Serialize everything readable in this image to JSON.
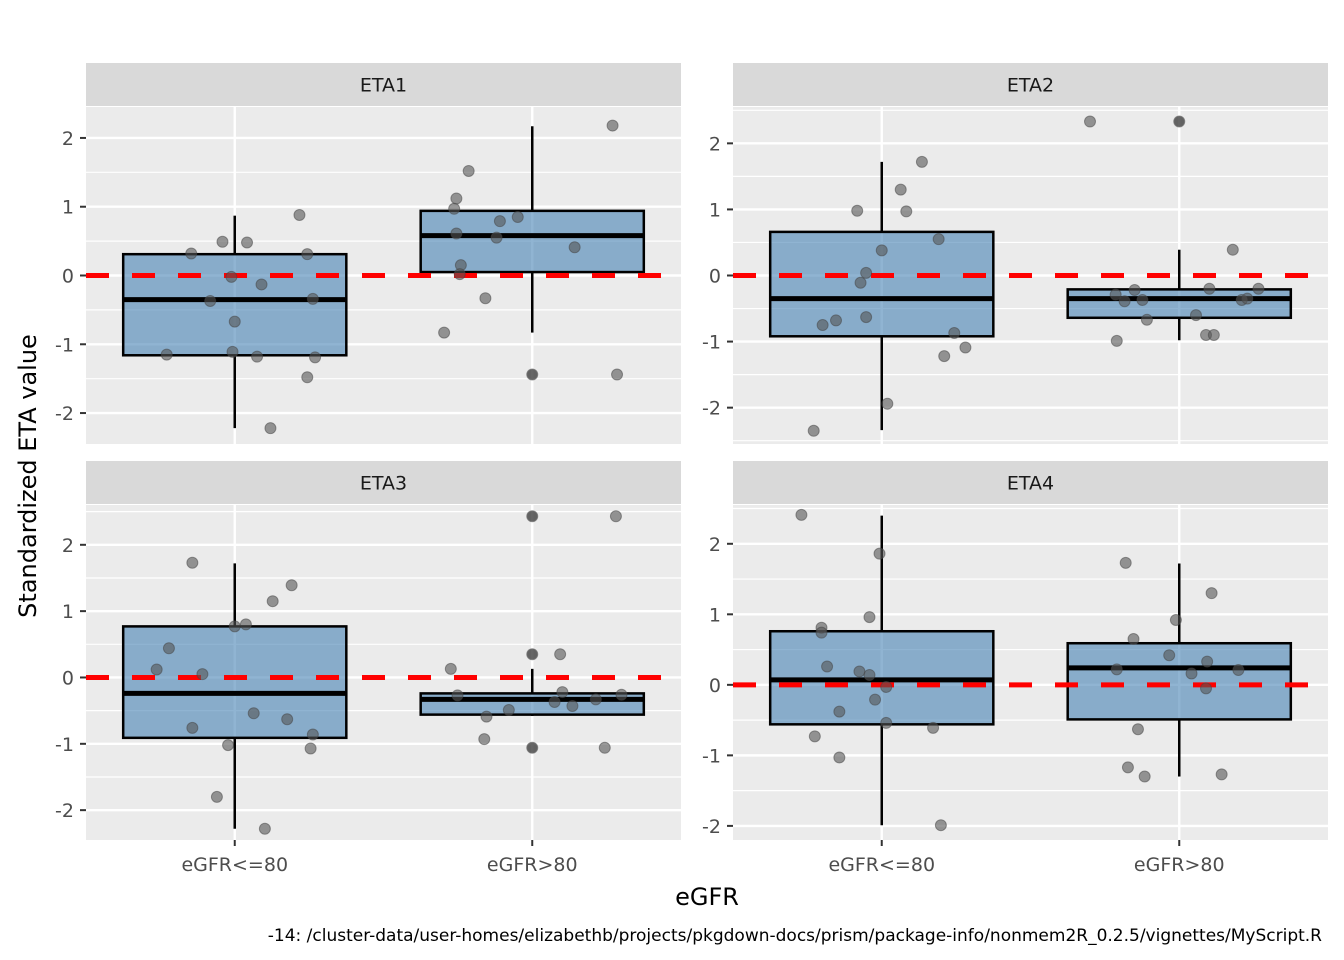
{
  "chart_data": {
    "type": "boxplot",
    "title": "",
    "xlabel": "eGFR",
    "ylabel": "Standardized ETA value",
    "caption": "-14: /cluster-data/user-homes/elizabethb/projects/pkgdown-docs/prism/package-info/nonmem2R_0.2.5/vignettes/MyScript.R",
    "categories": [
      "eGFR<=80",
      "eGFR>80"
    ],
    "reference_line": {
      "y": 0,
      "style": "dashed",
      "color": "#ff0000"
    },
    "colors": {
      "box_fill": "#4682b4",
      "box_fill_opacity": 0.6,
      "point": "#555555",
      "panel_bg": "#ebebeb",
      "strip_bg": "#d9d9d9",
      "grid": "#ffffff"
    },
    "facets": [
      {
        "label": "ETA1",
        "ylim": [
          -2.45,
          2.45
        ],
        "yticks": [
          -2,
          -1,
          0,
          1,
          2
        ],
        "boxes": [
          {
            "category": "eGFR<=80",
            "lower_whisker": -2.22,
            "q1": -1.16,
            "median": -0.35,
            "q3": 0.31,
            "upper_whisker": 0.87,
            "outliers": []
          },
          {
            "category": "eGFR>80",
            "lower_whisker": -0.83,
            "q1": 0.05,
            "median": 0.58,
            "q3": 0.94,
            "upper_whisker": 2.17,
            "outliers": [
              -1.44
            ]
          }
        ],
        "points": [
          {
            "category": "eGFR<=80",
            "jitter": -0.61,
            "y": -1.15
          },
          {
            "category": "eGFR<=80",
            "jitter": -0.39,
            "y": 0.32
          },
          {
            "category": "eGFR<=80",
            "jitter": -0.22,
            "y": -0.37
          },
          {
            "category": "eGFR<=80",
            "jitter": -0.11,
            "y": 0.49
          },
          {
            "category": "eGFR<=80",
            "jitter": -0.03,
            "y": -0.02
          },
          {
            "category": "eGFR<=80",
            "jitter": -0.02,
            "y": -1.11
          },
          {
            "category": "eGFR<=80",
            "jitter": 0.0,
            "y": -0.67
          },
          {
            "category": "eGFR<=80",
            "jitter": 0.11,
            "y": 0.48
          },
          {
            "category": "eGFR<=80",
            "jitter": 0.2,
            "y": -1.18
          },
          {
            "category": "eGFR<=80",
            "jitter": 0.24,
            "y": -0.13
          },
          {
            "category": "eGFR<=80",
            "jitter": 0.32,
            "y": -2.22
          },
          {
            "category": "eGFR<=80",
            "jitter": 0.58,
            "y": 0.88
          },
          {
            "category": "eGFR<=80",
            "jitter": 0.65,
            "y": 0.31
          },
          {
            "category": "eGFR<=80",
            "jitter": 0.65,
            "y": -1.48
          },
          {
            "category": "eGFR<=80",
            "jitter": 0.7,
            "y": -0.34
          },
          {
            "category": "eGFR<=80",
            "jitter": 0.72,
            "y": -1.19
          },
          {
            "category": "eGFR>80",
            "jitter": -0.79,
            "y": -0.83
          },
          {
            "category": "eGFR>80",
            "jitter": -0.7,
            "y": 0.97
          },
          {
            "category": "eGFR>80",
            "jitter": -0.68,
            "y": 1.12
          },
          {
            "category": "eGFR>80",
            "jitter": -0.68,
            "y": 0.61
          },
          {
            "category": "eGFR>80",
            "jitter": -0.64,
            "y": 0.15
          },
          {
            "category": "eGFR>80",
            "jitter": -0.65,
            "y": 0.02
          },
          {
            "category": "eGFR>80",
            "jitter": -0.57,
            "y": 1.52
          },
          {
            "category": "eGFR>80",
            "jitter": -0.42,
            "y": -0.33
          },
          {
            "category": "eGFR>80",
            "jitter": -0.32,
            "y": 0.55
          },
          {
            "category": "eGFR>80",
            "jitter": -0.29,
            "y": 0.79
          },
          {
            "category": "eGFR>80",
            "jitter": -0.13,
            "y": 0.85
          },
          {
            "category": "eGFR>80",
            "jitter": 0.0,
            "y": -1.44
          },
          {
            "category": "eGFR>80",
            "jitter": 0.38,
            "y": 0.41
          },
          {
            "category": "eGFR>80",
            "jitter": 0.72,
            "y": 2.18
          },
          {
            "category": "eGFR>80",
            "jitter": 0.76,
            "y": -1.44
          }
        ]
      },
      {
        "label": "ETA2",
        "ylim": [
          -2.55,
          2.55
        ],
        "yticks": [
          -2,
          -1,
          0,
          1,
          2
        ],
        "boxes": [
          {
            "category": "eGFR<=80",
            "lower_whisker": -2.34,
            "q1": -0.92,
            "median": -0.35,
            "q3": 0.66,
            "upper_whisker": 1.72,
            "outliers": []
          },
          {
            "category": "eGFR>80",
            "lower_whisker": -0.98,
            "q1": -0.64,
            "median": -0.35,
            "q3": -0.21,
            "upper_whisker": 0.39,
            "outliers": [
              2.33
            ]
          }
        ],
        "points": [
          {
            "category": "eGFR<=80",
            "jitter": -0.61,
            "y": -2.35
          },
          {
            "category": "eGFR<=80",
            "jitter": -0.53,
            "y": -0.75
          },
          {
            "category": "eGFR<=80",
            "jitter": -0.41,
            "y": -0.68
          },
          {
            "category": "eGFR<=80",
            "jitter": -0.22,
            "y": 0.98
          },
          {
            "category": "eGFR<=80",
            "jitter": -0.19,
            "y": -0.11
          },
          {
            "category": "eGFR<=80",
            "jitter": -0.14,
            "y": 0.04
          },
          {
            "category": "eGFR<=80",
            "jitter": -0.14,
            "y": -0.63
          },
          {
            "category": "eGFR<=80",
            "jitter": 0.0,
            "y": 0.38
          },
          {
            "category": "eGFR<=80",
            "jitter": 0.05,
            "y": -1.94
          },
          {
            "category": "eGFR<=80",
            "jitter": 0.17,
            "y": 1.3
          },
          {
            "category": "eGFR<=80",
            "jitter": 0.22,
            "y": 0.97
          },
          {
            "category": "eGFR<=80",
            "jitter": 0.36,
            "y": 1.72
          },
          {
            "category": "eGFR<=80",
            "jitter": 0.51,
            "y": 0.55
          },
          {
            "category": "eGFR<=80",
            "jitter": 0.56,
            "y": -1.22
          },
          {
            "category": "eGFR<=80",
            "jitter": 0.65,
            "y": -0.87
          },
          {
            "category": "eGFR<=80",
            "jitter": 0.75,
            "y": -1.09
          },
          {
            "category": "eGFR>80",
            "jitter": -0.8,
            "y": 2.33
          },
          {
            "category": "eGFR>80",
            "jitter": -0.56,
            "y": -0.99
          },
          {
            "category": "eGFR>80",
            "jitter": -0.57,
            "y": -0.29
          },
          {
            "category": "eGFR>80",
            "jitter": -0.49,
            "y": -0.39
          },
          {
            "category": "eGFR>80",
            "jitter": -0.4,
            "y": -0.22
          },
          {
            "category": "eGFR>80",
            "jitter": -0.33,
            "y": -0.37
          },
          {
            "category": "eGFR>80",
            "jitter": -0.29,
            "y": -0.67
          },
          {
            "category": "eGFR>80",
            "jitter": 0.0,
            "y": 2.33
          },
          {
            "category": "eGFR>80",
            "jitter": 0.15,
            "y": -0.6
          },
          {
            "category": "eGFR>80",
            "jitter": 0.24,
            "y": -0.9
          },
          {
            "category": "eGFR>80",
            "jitter": 0.27,
            "y": -0.2
          },
          {
            "category": "eGFR>80",
            "jitter": 0.31,
            "y": -0.9
          },
          {
            "category": "eGFR>80",
            "jitter": 0.48,
            "y": 0.39
          },
          {
            "category": "eGFR>80",
            "jitter": 0.56,
            "y": -0.37
          },
          {
            "category": "eGFR>80",
            "jitter": 0.61,
            "y": -0.35
          },
          {
            "category": "eGFR>80",
            "jitter": 0.71,
            "y": -0.2
          }
        ]
      },
      {
        "label": "ETA3",
        "ylim": [
          -2.45,
          2.6
        ],
        "yticks": [
          -2,
          -1,
          0,
          1,
          2
        ],
        "boxes": [
          {
            "category": "eGFR<=80",
            "lower_whisker": -2.28,
            "q1": -0.91,
            "median": -0.24,
            "q3": 0.77,
            "upper_whisker": 1.72,
            "outliers": []
          },
          {
            "category": "eGFR>80",
            "lower_whisker": -0.58,
            "q1": -0.56,
            "median": -0.33,
            "q3": -0.24,
            "upper_whisker": 0.13,
            "outliers": [
              2.43,
              0.35,
              -1.06
            ]
          }
        ],
        "points": [
          {
            "category": "eGFR<=80",
            "jitter": -0.7,
            "y": 0.12
          },
          {
            "category": "eGFR<=80",
            "jitter": -0.59,
            "y": 0.44
          },
          {
            "category": "eGFR<=80",
            "jitter": -0.38,
            "y": 1.73
          },
          {
            "category": "eGFR<=80",
            "jitter": -0.38,
            "y": -0.76
          },
          {
            "category": "eGFR<=80",
            "jitter": -0.29,
            "y": 0.05
          },
          {
            "category": "eGFR<=80",
            "jitter": -0.06,
            "y": -1.02
          },
          {
            "category": "eGFR<=80",
            "jitter": -0.16,
            "y": -1.8
          },
          {
            "category": "eGFR<=80",
            "jitter": 0.0,
            "y": 0.77
          },
          {
            "category": "eGFR<=80",
            "jitter": 0.1,
            "y": 0.8
          },
          {
            "category": "eGFR<=80",
            "jitter": 0.17,
            "y": -0.54
          },
          {
            "category": "eGFR<=80",
            "jitter": 0.27,
            "y": -2.28
          },
          {
            "category": "eGFR<=80",
            "jitter": 0.34,
            "y": 1.15
          },
          {
            "category": "eGFR<=80",
            "jitter": 0.47,
            "y": -0.63
          },
          {
            "category": "eGFR<=80",
            "jitter": 0.51,
            "y": 1.39
          },
          {
            "category": "eGFR<=80",
            "jitter": 0.68,
            "y": -1.07
          },
          {
            "category": "eGFR<=80",
            "jitter": 0.7,
            "y": -0.86
          },
          {
            "category": "eGFR>80",
            "jitter": -0.73,
            "y": 0.13
          },
          {
            "category": "eGFR>80",
            "jitter": -0.67,
            "y": -0.27
          },
          {
            "category": "eGFR>80",
            "jitter": -0.43,
            "y": -0.93
          },
          {
            "category": "eGFR>80",
            "jitter": -0.41,
            "y": -0.59
          },
          {
            "category": "eGFR>80",
            "jitter": -0.21,
            "y": -0.49
          },
          {
            "category": "eGFR>80",
            "jitter": 0.0,
            "y": 2.43
          },
          {
            "category": "eGFR>80",
            "jitter": 0.0,
            "y": 0.35
          },
          {
            "category": "eGFR>80",
            "jitter": 0.0,
            "y": -1.06
          },
          {
            "category": "eGFR>80",
            "jitter": 0.2,
            "y": -0.37
          },
          {
            "category": "eGFR>80",
            "jitter": 0.25,
            "y": 0.35
          },
          {
            "category": "eGFR>80",
            "jitter": 0.27,
            "y": -0.22
          },
          {
            "category": "eGFR>80",
            "jitter": 0.36,
            "y": -0.43
          },
          {
            "category": "eGFR>80",
            "jitter": 0.57,
            "y": -0.33
          },
          {
            "category": "eGFR>80",
            "jitter": 0.65,
            "y": -1.06
          },
          {
            "category": "eGFR>80",
            "jitter": 0.75,
            "y": 2.43
          },
          {
            "category": "eGFR>80",
            "jitter": 0.8,
            "y": -0.26
          }
        ]
      },
      {
        "label": "ETA4",
        "ylim": [
          -2.2,
          2.55
        ],
        "yticks": [
          -2,
          -1,
          0,
          1,
          2
        ],
        "boxes": [
          {
            "category": "eGFR<=80",
            "lower_whisker": -1.99,
            "q1": -0.56,
            "median": 0.07,
            "q3": 0.76,
            "upper_whisker": 2.4,
            "outliers": []
          },
          {
            "category": "eGFR>80",
            "lower_whisker": -1.3,
            "q1": -0.49,
            "median": 0.24,
            "q3": 0.59,
            "upper_whisker": 1.72,
            "outliers": []
          }
        ],
        "points": [
          {
            "category": "eGFR<=80",
            "jitter": -0.72,
            "y": 2.41
          },
          {
            "category": "eGFR<=80",
            "jitter": -0.6,
            "y": -0.73
          },
          {
            "category": "eGFR<=80",
            "jitter": -0.54,
            "y": 0.81
          },
          {
            "category": "eGFR<=80",
            "jitter": -0.54,
            "y": 0.74
          },
          {
            "category": "eGFR<=80",
            "jitter": -0.49,
            "y": 0.26
          },
          {
            "category": "eGFR<=80",
            "jitter": -0.38,
            "y": -0.38
          },
          {
            "category": "eGFR<=80",
            "jitter": -0.38,
            "y": -1.03
          },
          {
            "category": "eGFR<=80",
            "jitter": -0.2,
            "y": 0.19
          },
          {
            "category": "eGFR<=80",
            "jitter": -0.11,
            "y": 0.96
          },
          {
            "category": "eGFR<=80",
            "jitter": -0.11,
            "y": 0.14
          },
          {
            "category": "eGFR<=80",
            "jitter": -0.06,
            "y": -0.21
          },
          {
            "category": "eGFR<=80",
            "jitter": -0.02,
            "y": 1.86
          },
          {
            "category": "eGFR<=80",
            "jitter": 0.04,
            "y": -0.03
          },
          {
            "category": "eGFR<=80",
            "jitter": 0.04,
            "y": -0.54
          },
          {
            "category": "eGFR<=80",
            "jitter": 0.46,
            "y": -0.61
          },
          {
            "category": "eGFR<=80",
            "jitter": 0.53,
            "y": -1.99
          },
          {
            "category": "eGFR>80",
            "jitter": -0.56,
            "y": 0.22
          },
          {
            "category": "eGFR>80",
            "jitter": -0.48,
            "y": 1.73
          },
          {
            "category": "eGFR>80",
            "jitter": -0.46,
            "y": -1.17
          },
          {
            "category": "eGFR>80",
            "jitter": -0.41,
            "y": 0.65
          },
          {
            "category": "eGFR>80",
            "jitter": -0.37,
            "y": -0.63
          },
          {
            "category": "eGFR>80",
            "jitter": -0.31,
            "y": -1.3
          },
          {
            "category": "eGFR>80",
            "jitter": -0.09,
            "y": 0.42
          },
          {
            "category": "eGFR>80",
            "jitter": -0.03,
            "y": 0.92
          },
          {
            "category": "eGFR>80",
            "jitter": 0.11,
            "y": 0.16
          },
          {
            "category": "eGFR>80",
            "jitter": 0.24,
            "y": -0.05
          },
          {
            "category": "eGFR>80",
            "jitter": 0.25,
            "y": 0.33
          },
          {
            "category": "eGFR>80",
            "jitter": 0.29,
            "y": 1.3
          },
          {
            "category": "eGFR>80",
            "jitter": 0.38,
            "y": -1.27
          },
          {
            "category": "eGFR>80",
            "jitter": 0.53,
            "y": 0.21
          }
        ]
      }
    ]
  }
}
